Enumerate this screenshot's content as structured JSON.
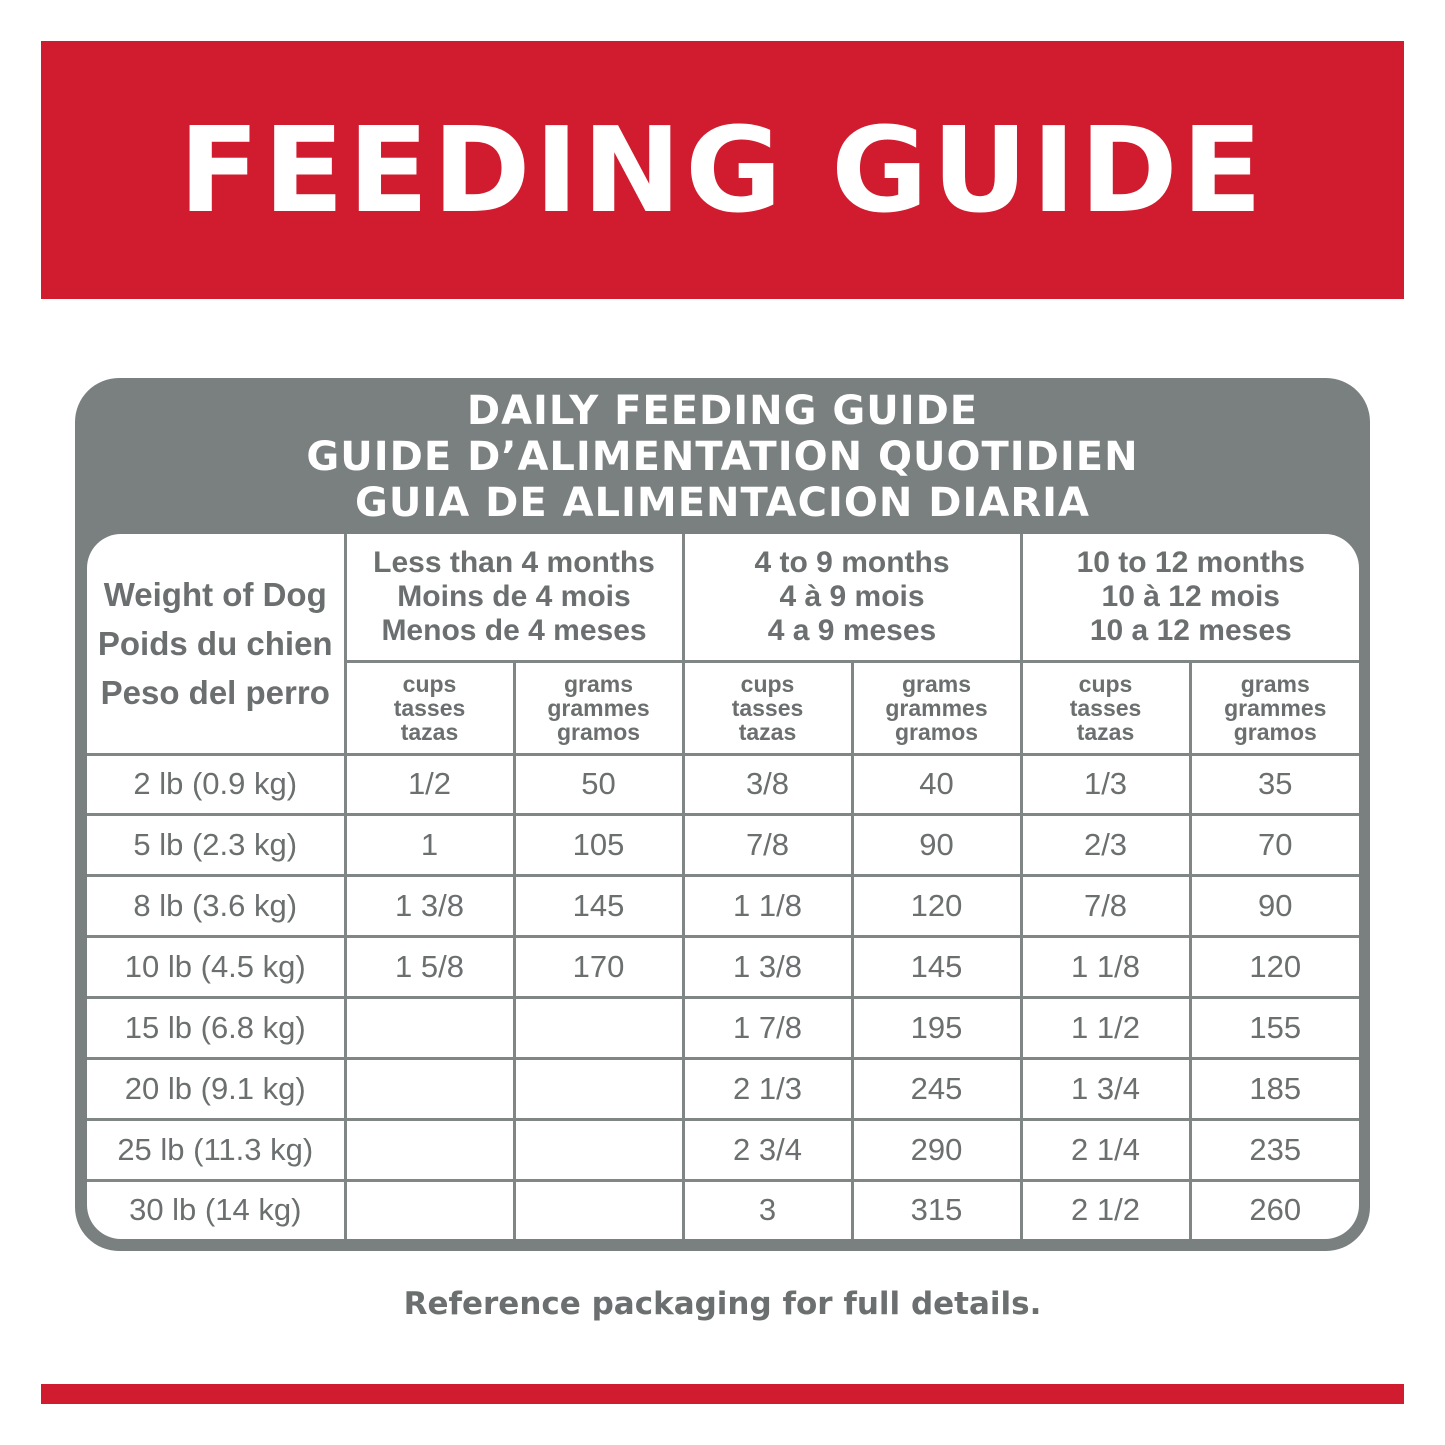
{
  "banner": {
    "title": "FEEDING GUIDE",
    "color": "#d01c2e"
  },
  "card": {
    "title_lines": [
      "DAILY FEEDING GUIDE",
      "GUIDE D’ALIMENTATION QUOTIDIEN",
      "GUIA DE ALIMENTACION DIARIA"
    ],
    "color": "#7a7f7f"
  },
  "table": {
    "weight_header": [
      "Weight of Dog",
      "Poids du chien",
      "Peso del perro"
    ],
    "age_groups": [
      [
        "Less than 4 months",
        "Moins de 4 mois",
        "Menos de 4 meses"
      ],
      [
        "4 to 9 months",
        "4 à 9 mois",
        "4 a 9 meses"
      ],
      [
        "10 to 12 months",
        "10 à 12 mois",
        "10 a 12 meses"
      ]
    ],
    "unit_headers": {
      "cups": [
        "cups",
        "tasses",
        "tazas"
      ],
      "grams": [
        "grams",
        "grammes",
        "gramos"
      ]
    },
    "rows": [
      {
        "weight": "2 lb (0.9 kg)",
        "c1": "1/2",
        "g1": "50",
        "c2": "3/8",
        "g2": "40",
        "c3": "1/3",
        "g3": "35"
      },
      {
        "weight": "5 lb (2.3 kg)",
        "c1": "1",
        "g1": "105",
        "c2": "7/8",
        "g2": "90",
        "c3": "2/3",
        "g3": "70"
      },
      {
        "weight": "8 lb (3.6 kg)",
        "c1": "1 3/8",
        "g1": "145",
        "c2": "1 1/8",
        "g2": "120",
        "c3": "7/8",
        "g3": "90"
      },
      {
        "weight": "10 lb (4.5 kg)",
        "c1": "1 5/8",
        "g1": "170",
        "c2": "1 3/8",
        "g2": "145",
        "c3": "1 1/8",
        "g3": "120"
      },
      {
        "weight": "15 lb (6.8 kg)",
        "c1": "",
        "g1": "",
        "c2": "1 7/8",
        "g2": "195",
        "c3": "1 1/2",
        "g3": "155"
      },
      {
        "weight": "20 lb (9.1 kg)",
        "c1": "",
        "g1": "",
        "c2": "2 1/3",
        "g2": "245",
        "c3": "1 3/4",
        "g3": "185"
      },
      {
        "weight": "25 lb (11.3 kg)",
        "c1": "",
        "g1": "",
        "c2": "2 3/4",
        "g2": "290",
        "c3": "2 1/4",
        "g3": "235"
      },
      {
        "weight": "30 lb (14 kg)",
        "c1": "",
        "g1": "",
        "c2": "3",
        "g2": "315",
        "c3": "2 1/2",
        "g3": "260"
      }
    ]
  },
  "footer": {
    "note": "Reference packaging for full details."
  }
}
